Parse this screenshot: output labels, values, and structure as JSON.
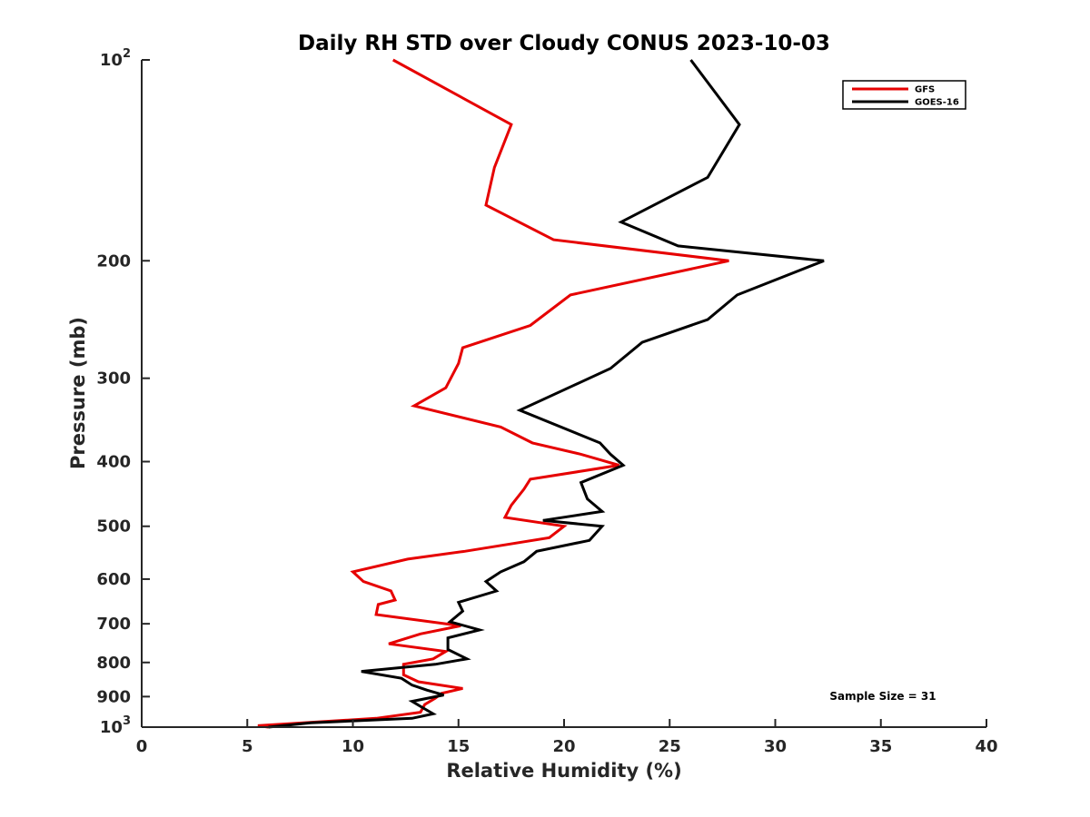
{
  "chart_data": {
    "type": "line",
    "title": "Daily RH STD over Cloudy CONUS 2023-10-03",
    "xlabel": "Relative Humidity (%)",
    "ylabel": "Pressure (mb)",
    "xlim": [
      0,
      40
    ],
    "ylim": [
      100,
      1000
    ],
    "y_scale": "log",
    "y_reversed": true,
    "grid": false,
    "legend_position": "top-right",
    "x_ticks": [
      {
        "value": 0,
        "label": "0"
      },
      {
        "value": 5,
        "label": "5"
      },
      {
        "value": 10,
        "label": "10"
      },
      {
        "value": 15,
        "label": "15"
      },
      {
        "value": 20,
        "label": "20"
      },
      {
        "value": 25,
        "label": "25"
      },
      {
        "value": 30,
        "label": "30"
      },
      {
        "value": 35,
        "label": "35"
      },
      {
        "value": 40,
        "label": "40"
      }
    ],
    "y_ticks": [
      {
        "value": 100,
        "label": "10",
        "sup": "2"
      },
      {
        "value": 200,
        "label": "200",
        "sup": ""
      },
      {
        "value": 300,
        "label": "300",
        "sup": ""
      },
      {
        "value": 400,
        "label": "400",
        "sup": ""
      },
      {
        "value": 500,
        "label": "500",
        "sup": ""
      },
      {
        "value": 600,
        "label": "600",
        "sup": ""
      },
      {
        "value": 700,
        "label": "700",
        "sup": ""
      },
      {
        "value": 800,
        "label": "800",
        "sup": ""
      },
      {
        "value": 900,
        "label": "900",
        "sup": ""
      },
      {
        "value": 1000,
        "label": "10",
        "sup": "3"
      }
    ],
    "annotation": "Sample Size = 31",
    "series": [
      {
        "name": "GFS",
        "color": "#e60000",
        "points": [
          [
            11.9,
            100
          ],
          [
            17.5,
            125
          ],
          [
            16.7,
            145
          ],
          [
            16.3,
            165
          ],
          [
            19.5,
            186
          ],
          [
            27.8,
            200
          ],
          [
            20.3,
            225
          ],
          [
            18.4,
            250
          ],
          [
            15.2,
            270
          ],
          [
            15.0,
            285
          ],
          [
            14.4,
            310
          ],
          [
            12.9,
            330
          ],
          [
            17.0,
            355
          ],
          [
            18.5,
            375
          ],
          [
            20.8,
            390
          ],
          [
            22.6,
            405
          ],
          [
            18.4,
            425
          ],
          [
            18.1,
            440
          ],
          [
            17.5,
            465
          ],
          [
            17.2,
            485
          ],
          [
            20.0,
            500
          ],
          [
            19.3,
            520
          ],
          [
            15.3,
            545
          ],
          [
            12.6,
            560
          ],
          [
            10.0,
            585
          ],
          [
            10.5,
            605
          ],
          [
            11.8,
            625
          ],
          [
            12.0,
            645
          ],
          [
            11.2,
            655
          ],
          [
            11.1,
            678
          ],
          [
            15.1,
            705
          ],
          [
            13.2,
            725
          ],
          [
            11.7,
            750
          ],
          [
            14.4,
            770
          ],
          [
            13.8,
            790
          ],
          [
            12.4,
            805
          ],
          [
            12.4,
            835
          ],
          [
            13.1,
            855
          ],
          [
            15.2,
            875
          ],
          [
            14.2,
            890
          ],
          [
            13.9,
            905
          ],
          [
            13.4,
            925
          ],
          [
            13.2,
            950
          ],
          [
            11.1,
            970
          ],
          [
            5.5,
            995
          ],
          [
            6.0,
            1000
          ]
        ]
      },
      {
        "name": "GOES-16",
        "color": "#000000",
        "points": [
          [
            26.0,
            100
          ],
          [
            28.3,
            125
          ],
          [
            26.8,
            150
          ],
          [
            22.7,
            175
          ],
          [
            25.4,
            190
          ],
          [
            32.3,
            200
          ],
          [
            28.2,
            225
          ],
          [
            26.8,
            245
          ],
          [
            23.7,
            265
          ],
          [
            22.2,
            290
          ],
          [
            17.9,
            335
          ],
          [
            21.7,
            375
          ],
          [
            22.2,
            390
          ],
          [
            22.8,
            405
          ],
          [
            20.8,
            430
          ],
          [
            21.1,
            455
          ],
          [
            21.8,
            475
          ],
          [
            19.0,
            490
          ],
          [
            21.8,
            500
          ],
          [
            21.2,
            525
          ],
          [
            18.7,
            545
          ],
          [
            18.1,
            565
          ],
          [
            17.0,
            585
          ],
          [
            16.3,
            605
          ],
          [
            16.8,
            625
          ],
          [
            15.0,
            650
          ],
          [
            15.2,
            670
          ],
          [
            14.6,
            695
          ],
          [
            16.0,
            715
          ],
          [
            14.5,
            735
          ],
          [
            14.5,
            765
          ],
          [
            15.4,
            790
          ],
          [
            13.9,
            805
          ],
          [
            10.4,
            825
          ],
          [
            12.3,
            845
          ],
          [
            12.8,
            865
          ],
          [
            13.5,
            880
          ],
          [
            14.3,
            895
          ],
          [
            12.8,
            915
          ],
          [
            13.3,
            935
          ],
          [
            13.8,
            955
          ],
          [
            12.8,
            970
          ],
          [
            8.0,
            985
          ],
          [
            6.0,
            1000
          ]
        ]
      }
    ]
  }
}
